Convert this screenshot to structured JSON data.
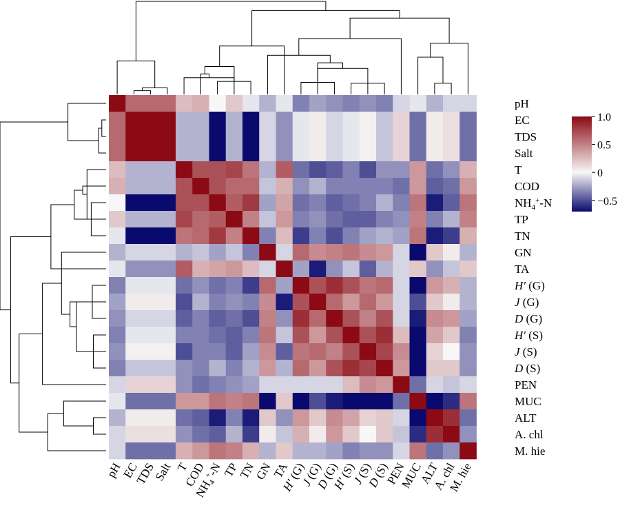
{
  "chart_data": {
    "type": "heatmap",
    "labels": [
      {
        "text": "pH"
      },
      {
        "text": "EC"
      },
      {
        "text": "TDS"
      },
      {
        "text": "Salt"
      },
      {
        "text": "T"
      },
      {
        "text": "COD"
      },
      {
        "text": "NH",
        "sub": "4",
        "sup": "+",
        "tail": "-N"
      },
      {
        "text": "TP"
      },
      {
        "text": "TN"
      },
      {
        "text": "GN"
      },
      {
        "text": "TA"
      },
      {
        "text": "H′",
        "italic": true,
        "tail": " (G)"
      },
      {
        "text": "J",
        "italic": true,
        "tail": " (G)"
      },
      {
        "text": "D",
        "italic": true,
        "tail": " (G)"
      },
      {
        "text": "H′",
        "italic": true,
        "tail": " (S)"
      },
      {
        "text": "J",
        "italic": true,
        "tail": " (S)"
      },
      {
        "text": "D",
        "italic": true,
        "tail": " (S)"
      },
      {
        "text": "PEN"
      },
      {
        "text": "MUC"
      },
      {
        "text": "ALT"
      },
      {
        "text": "A. chl"
      },
      {
        "text": "M. hie"
      }
    ],
    "values": [
      [
        1.0,
        0.6,
        0.6,
        0.6,
        0.25,
        0.3,
        0.0,
        0.2,
        -0.05,
        -0.2,
        -0.05,
        -0.35,
        -0.25,
        -0.3,
        -0.35,
        -0.3,
        -0.35,
        -0.1,
        -0.05,
        -0.2,
        -0.1,
        -0.1
      ],
      [
        0.6,
        1.0,
        1.0,
        1.0,
        -0.2,
        -0.2,
        -0.7,
        -0.2,
        -0.7,
        -0.1,
        -0.3,
        -0.05,
        0.05,
        -0.1,
        -0.05,
        0.03,
        -0.15,
        0.15,
        -0.4,
        0.05,
        0.1,
        -0.4
      ],
      [
        0.6,
        1.0,
        1.0,
        1.0,
        -0.2,
        -0.2,
        -0.7,
        -0.2,
        -0.7,
        -0.1,
        -0.3,
        -0.05,
        0.05,
        -0.1,
        -0.05,
        0.03,
        -0.15,
        0.15,
        -0.4,
        0.05,
        0.1,
        -0.4
      ],
      [
        0.6,
        1.0,
        1.0,
        1.0,
        -0.2,
        -0.2,
        -0.7,
        -0.2,
        -0.7,
        -0.1,
        -0.3,
        -0.05,
        0.05,
        -0.1,
        -0.05,
        0.03,
        -0.15,
        0.15,
        -0.4,
        0.05,
        0.1,
        -0.4
      ],
      [
        0.25,
        -0.2,
        -0.2,
        -0.2,
        1.0,
        0.7,
        0.7,
        0.75,
        0.55,
        -0.2,
        0.65,
        -0.4,
        -0.5,
        -0.45,
        -0.35,
        -0.5,
        -0.3,
        -0.3,
        0.4,
        -0.4,
        -0.3,
        0.3
      ],
      [
        0.3,
        -0.2,
        -0.2,
        -0.2,
        0.7,
        1.0,
        0.7,
        0.6,
        0.6,
        -0.15,
        0.3,
        -0.3,
        -0.2,
        -0.35,
        -0.35,
        -0.35,
        -0.35,
        -0.4,
        0.4,
        -0.45,
        -0.4,
        0.4
      ],
      [
        0.0,
        -0.7,
        -0.7,
        -0.7,
        0.7,
        0.7,
        1.0,
        0.65,
        0.8,
        -0.25,
        0.35,
        -0.4,
        -0.35,
        -0.45,
        -0.4,
        -0.35,
        -0.2,
        -0.35,
        0.55,
        -0.65,
        -0.45,
        0.55
      ],
      [
        0.2,
        -0.2,
        -0.2,
        -0.2,
        0.75,
        0.6,
        0.65,
        1.0,
        0.5,
        -0.15,
        0.4,
        -0.35,
        -0.3,
        -0.4,
        -0.45,
        -0.45,
        -0.35,
        -0.3,
        0.5,
        -0.35,
        -0.2,
        0.5
      ],
      [
        -0.05,
        -0.7,
        -0.7,
        -0.7,
        0.55,
        0.6,
        0.8,
        0.5,
        1.0,
        -0.35,
        0.25,
        -0.55,
        -0.35,
        -0.5,
        -0.35,
        -0.25,
        -0.2,
        -0.25,
        0.55,
        -0.65,
        -0.55,
        0.3
      ],
      [
        -0.2,
        -0.1,
        -0.1,
        -0.1,
        -0.2,
        -0.15,
        -0.25,
        -0.15,
        -0.35,
        1.0,
        -0.1,
        0.6,
        0.45,
        0.5,
        0.55,
        0.45,
        0.4,
        -0.1,
        -0.75,
        0.2,
        0.05,
        -0.2
      ],
      [
        -0.05,
        -0.3,
        -0.3,
        -0.3,
        0.65,
        0.3,
        0.35,
        0.4,
        0.25,
        -0.1,
        1.0,
        -0.25,
        -0.65,
        -0.3,
        -0.15,
        -0.45,
        -0.2,
        -0.1,
        0.2,
        -0.3,
        -0.15,
        0.2
      ],
      [
        -0.35,
        -0.05,
        -0.05,
        -0.05,
        -0.4,
        -0.3,
        -0.4,
        -0.35,
        -0.55,
        0.6,
        -0.25,
        1.0,
        0.7,
        0.85,
        0.7,
        0.55,
        0.6,
        -0.1,
        -0.75,
        0.4,
        0.3,
        -0.2
      ],
      [
        -0.25,
        0.05,
        0.05,
        0.05,
        -0.5,
        -0.2,
        -0.35,
        -0.3,
        -0.35,
        0.45,
        -0.65,
        0.7,
        1.0,
        0.6,
        0.4,
        0.6,
        0.4,
        -0.1,
        -0.5,
        0.2,
        0.05,
        -0.2
      ],
      [
        -0.3,
        -0.1,
        -0.1,
        -0.1,
        -0.45,
        -0.35,
        -0.45,
        -0.4,
        -0.5,
        0.5,
        -0.3,
        0.85,
        0.6,
        1.0,
        0.7,
        0.5,
        0.7,
        -0.1,
        -0.65,
        0.45,
        0.4,
        -0.25
      ],
      [
        -0.35,
        -0.05,
        -0.05,
        -0.05,
        -0.35,
        -0.35,
        -0.4,
        -0.45,
        -0.35,
        0.55,
        -0.15,
        0.7,
        0.4,
        0.7,
        1.0,
        0.7,
        0.85,
        0.25,
        -0.8,
        0.35,
        0.2,
        -0.35
      ],
      [
        -0.3,
        0.03,
        0.03,
        0.03,
        -0.5,
        -0.35,
        -0.35,
        -0.45,
        -0.25,
        0.45,
        -0.45,
        0.55,
        0.6,
        0.5,
        0.7,
        1.0,
        0.75,
        0.45,
        -0.75,
        0.15,
        0.0,
        -0.3
      ],
      [
        -0.35,
        -0.15,
        -0.15,
        -0.15,
        -0.3,
        -0.35,
        -0.2,
        -0.35,
        -0.2,
        0.4,
        -0.2,
        0.6,
        0.4,
        0.7,
        0.85,
        0.75,
        1.0,
        0.4,
        -0.7,
        0.2,
        0.2,
        -0.3
      ],
      [
        -0.1,
        0.15,
        0.15,
        0.15,
        -0.3,
        -0.4,
        -0.35,
        -0.3,
        -0.25,
        -0.1,
        -0.1,
        -0.1,
        -0.1,
        -0.1,
        0.25,
        0.45,
        0.4,
        1.0,
        -0.4,
        -0.1,
        -0.15,
        -0.1
      ],
      [
        -0.05,
        -0.4,
        -0.4,
        -0.4,
        0.4,
        0.4,
        0.55,
        0.5,
        0.55,
        -0.75,
        0.2,
        -0.75,
        -0.5,
        -0.65,
        -0.8,
        -0.75,
        -0.7,
        -0.4,
        1.0,
        -0.7,
        -0.6,
        0.55
      ],
      [
        -0.2,
        0.05,
        0.05,
        0.05,
        -0.4,
        -0.45,
        -0.65,
        -0.35,
        -0.65,
        0.2,
        -0.3,
        0.4,
        0.2,
        0.45,
        0.35,
        0.15,
        0.2,
        -0.1,
        -0.7,
        1.0,
        0.85,
        -0.4
      ],
      [
        -0.1,
        0.1,
        0.1,
        0.1,
        -0.3,
        -0.4,
        -0.45,
        -0.2,
        -0.55,
        0.05,
        -0.15,
        0.3,
        0.05,
        0.4,
        0.2,
        0.0,
        0.2,
        -0.15,
        -0.6,
        0.85,
        1.0,
        -0.3
      ],
      [
        -0.1,
        -0.4,
        -0.4,
        -0.4,
        0.3,
        0.4,
        0.55,
        0.5,
        0.3,
        -0.2,
        0.2,
        -0.2,
        -0.2,
        -0.25,
        -0.35,
        -0.3,
        -0.3,
        -0.1,
        0.55,
        -0.4,
        -0.3,
        1.0
      ]
    ],
    "colorbar": {
      "range": [
        -0.7,
        1.0
      ],
      "ticks": [
        1.0,
        0.5,
        0,
        -0.5
      ],
      "tick_labels": [
        "1.0",
        "0.5",
        "0",
        "−0.5"
      ],
      "low_color": "#0a0a6e",
      "mid_color": "#f7f7f7",
      "high_color": "#8b0a14"
    },
    "dendrogram": "top and left",
    "grid": false
  }
}
